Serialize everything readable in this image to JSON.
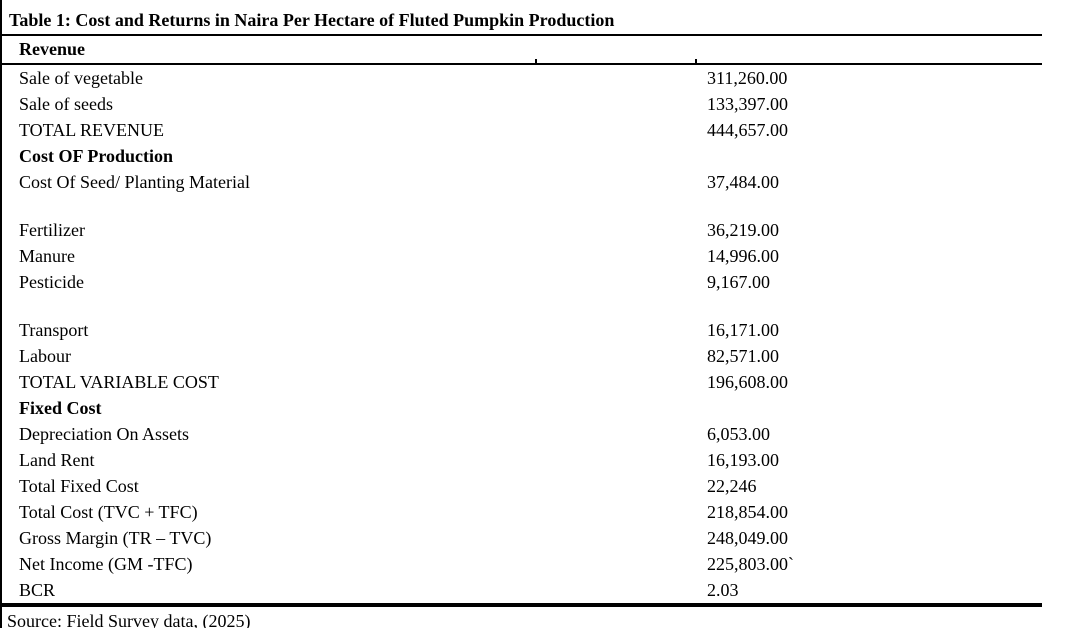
{
  "colors": {
    "text": "#000000",
    "background": "#ffffff",
    "rule": "#000000"
  },
  "table": {
    "title": "Table 1: Cost and Returns in Naira Per Hectare of Fluted Pumpkin Production",
    "section_header": "Revenue",
    "rows": [
      {
        "label": "Sale of vegetable",
        "value": "311,260.00"
      },
      {
        "label": "Sale of seeds",
        "value": "133,397.00"
      },
      {
        "label": "TOTAL REVENUE",
        "value": "444,657.00"
      },
      {
        "label": "Cost OF Production",
        "value": "",
        "bold": true
      },
      {
        "label": "Cost Of Seed/ Planting Material",
        "value": "37,484.00"
      },
      {
        "spacer": true
      },
      {
        "label": "Fertilizer",
        "value": "36,219.00"
      },
      {
        "label": "Manure",
        "value": "14,996.00"
      },
      {
        "label": "Pesticide",
        "value": "9,167.00"
      },
      {
        "spacer": true
      },
      {
        "label": "Transport",
        "value": "16,171.00"
      },
      {
        "label": "Labour",
        "value": "82,571.00"
      },
      {
        "label": "TOTAL VARIABLE COST",
        "value": "196,608.00"
      },
      {
        "label": "Fixed Cost",
        "value": "",
        "bold": true
      },
      {
        "label": "Depreciation On Assets",
        "value": "6,053.00"
      },
      {
        "label": "Land Rent",
        "value": "16,193.00"
      },
      {
        "label": "Total Fixed Cost",
        "value": "22,246"
      },
      {
        "label": "Total Cost (TVC + TFC)",
        "value": "218,854.00"
      },
      {
        "label": "Gross Margin (TR – TVC)",
        "value": "248,049.00"
      },
      {
        "label": "Net Income (GM -TFC)",
        "value": "225,803.00`"
      },
      {
        "label": "BCR",
        "value": "2.03"
      }
    ],
    "source": "Source: Field Survey data, (2025)"
  }
}
